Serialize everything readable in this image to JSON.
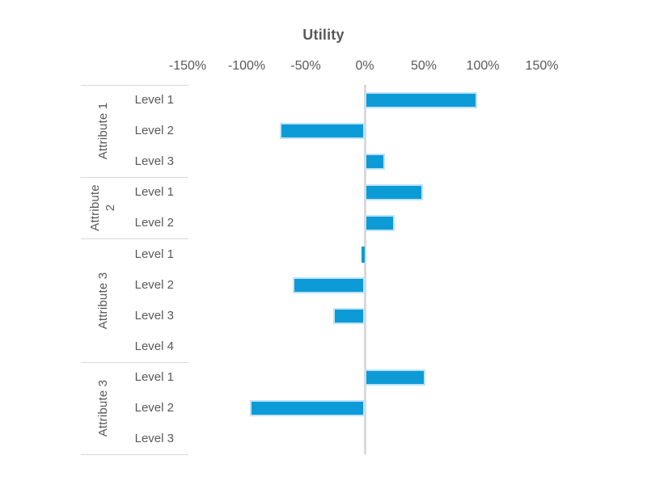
{
  "chart_data": {
    "type": "bar",
    "orientation": "horizontal",
    "title": "Utility",
    "axis": {
      "position": "top",
      "ticks": [
        "-150%",
        "-100%",
        "-50%",
        "0%",
        "50%",
        "100%",
        "150%"
      ],
      "tick_values": [
        -150,
        -100,
        -50,
        0,
        50,
        100,
        150
      ],
      "range": [
        -150,
        150
      ],
      "unit": "%"
    },
    "grid": "zero-line-only",
    "legend": "none",
    "groups": [
      {
        "name": "Attribute 1",
        "levels": [
          {
            "label": "Level 1",
            "value": 95
          },
          {
            "label": "Level 2",
            "value": -72
          },
          {
            "label": "Level 3",
            "value": 17
          }
        ]
      },
      {
        "name": "Attribute 2",
        "levels": [
          {
            "label": "Level 1",
            "value": 49
          },
          {
            "label": "Level 2",
            "value": 25
          }
        ]
      },
      {
        "name": "Attribute 3",
        "levels": [
          {
            "label": "Level 1",
            "value": -3
          },
          {
            "label": "Level 2",
            "value": -61
          },
          {
            "label": "Level 3",
            "value": -27
          },
          {
            "label": "Level 4",
            "value": 0
          }
        ]
      },
      {
        "name": "Attribute 3",
        "levels": [
          {
            "label": "Level 1",
            "value": 51
          },
          {
            "label": "Level 2",
            "value": -97
          },
          {
            "label": "Level 3",
            "value": 0
          }
        ]
      }
    ],
    "colors": {
      "bar": "#0d9bd7",
      "bar_border": "#bfe3f5",
      "axis_line": "#d9d9d9",
      "divider_line": "#d9d9d9",
      "text": "#595959"
    }
  }
}
